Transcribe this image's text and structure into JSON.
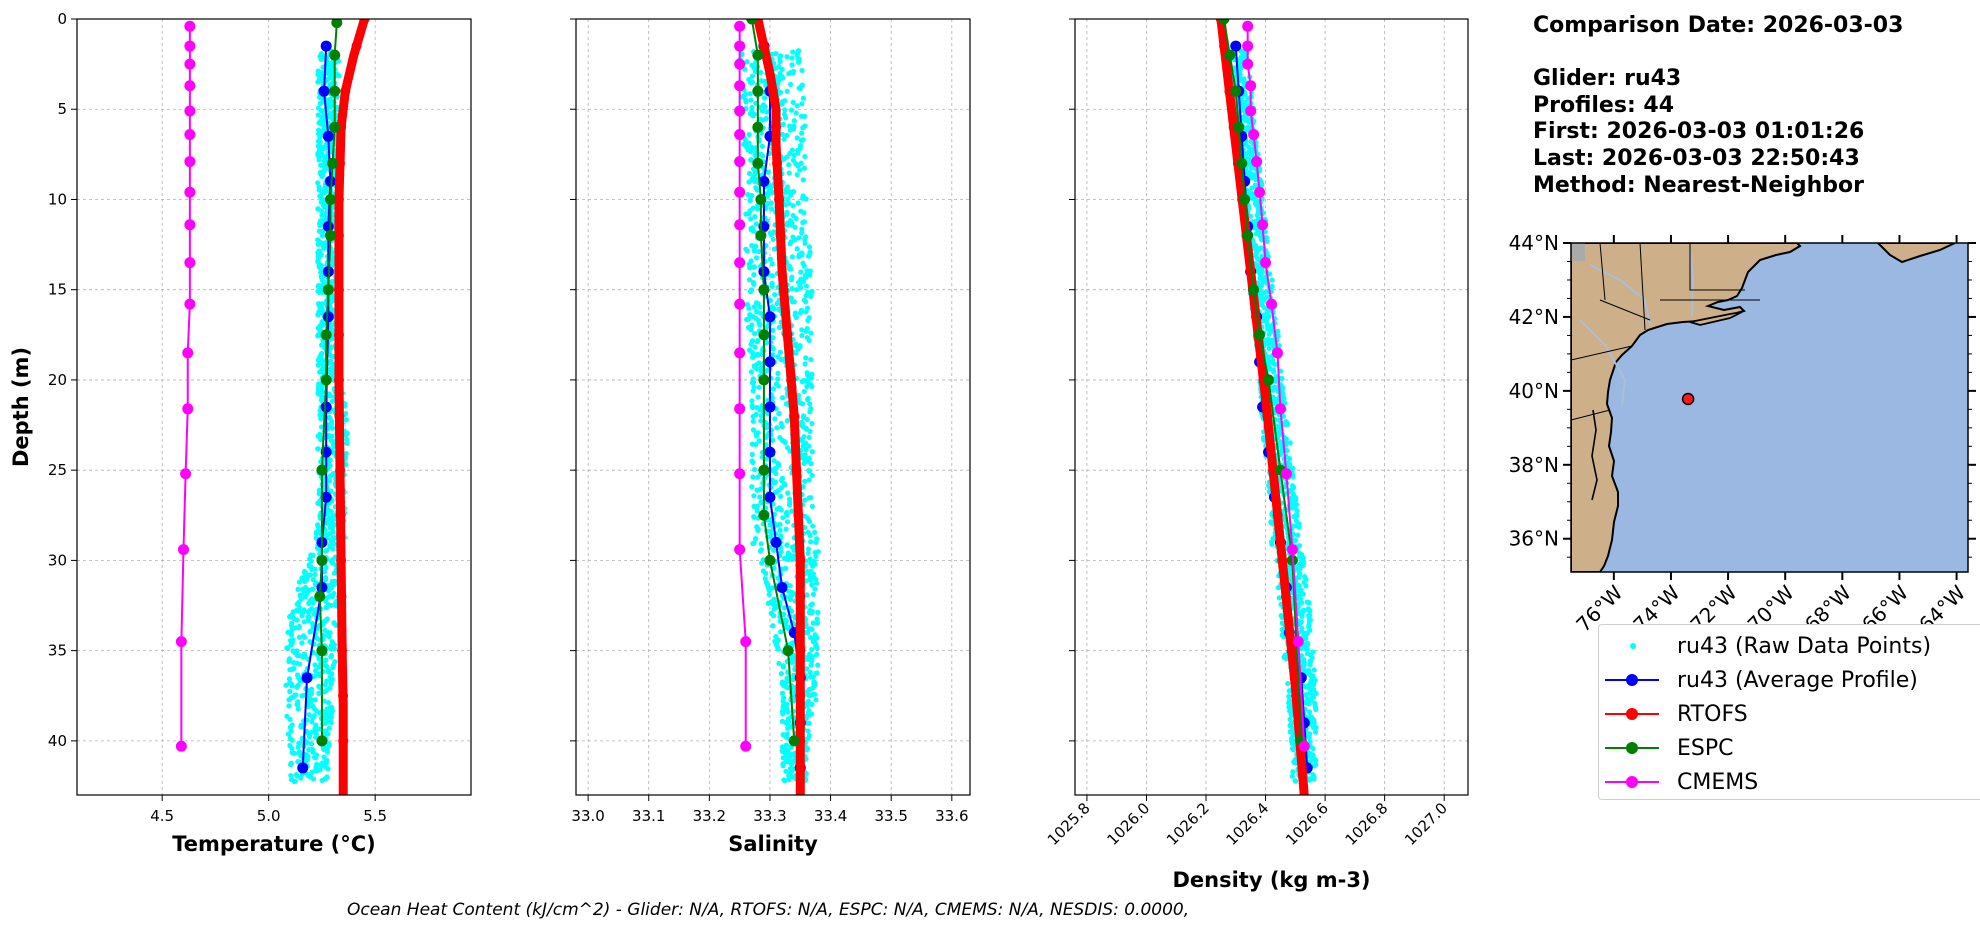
{
  "chart_data": [
    {
      "type": "line",
      "xlabel": "Temperature (°C)",
      "ylabel": "Depth (m)",
      "xlim": [
        4.1,
        5.95
      ],
      "ylim": [
        43,
        0
      ],
      "xticks": [
        4.5,
        5.0,
        5.5
      ],
      "yticks": [
        0,
        5,
        10,
        15,
        20,
        25,
        30,
        35,
        40
      ],
      "grid": true,
      "series": [
        {
          "name": "ru43 (Raw Data Points)",
          "kind": "scatter",
          "color": "#00ffff",
          "depth": [
            2,
            5,
            8,
            11,
            14,
            17,
            20,
            23,
            26,
            29,
            31,
            33,
            35,
            37,
            39,
            41
          ],
          "min": [
            5.23,
            5.23,
            5.23,
            5.23,
            5.23,
            5.23,
            5.23,
            5.23,
            5.23,
            5.22,
            5.15,
            5.1,
            5.08,
            5.08,
            5.08,
            5.1
          ],
          "max": [
            5.33,
            5.33,
            5.33,
            5.33,
            5.33,
            5.33,
            5.35,
            5.37,
            5.36,
            5.36,
            5.33,
            5.32,
            5.32,
            5.3,
            5.3,
            5.28
          ]
        },
        {
          "name": "ru43 (Average Profile)",
          "color": "#0000ff",
          "x": [
            5.27,
            5.26,
            5.28,
            5.29,
            5.28,
            5.28,
            5.28,
            5.27,
            5.27,
            5.27,
            5.25,
            5.25,
            5.18,
            5.16
          ],
          "y": [
            1.5,
            4,
            6.5,
            9,
            11.5,
            14,
            16.5,
            21.5,
            24,
            26.5,
            29,
            31.5,
            36.5,
            41.5
          ]
        },
        {
          "name": "RTOFS",
          "color": "#ff0000",
          "x": [
            5.45,
            5.4,
            5.36,
            5.34,
            5.335,
            5.33,
            5.33,
            5.33,
            5.33,
            5.335,
            5.34,
            5.345,
            5.35,
            5.35,
            5.35
          ],
          "y": [
            0,
            2,
            4,
            6,
            8,
            10,
            12,
            15,
            20,
            25,
            30,
            35,
            38,
            40,
            43
          ]
        },
        {
          "name": "ESPC",
          "color": "#008000",
          "x": [
            5.32,
            5.31,
            5.31,
            5.31,
            5.3,
            5.29,
            5.29,
            5.28,
            5.27,
            5.27,
            5.25,
            5.25,
            5.24,
            5.25,
            5.25
          ],
          "y": [
            0.2,
            2,
            4,
            6,
            8,
            10,
            12,
            15,
            17.5,
            20,
            25,
            30,
            32,
            35,
            40
          ]
        },
        {
          "name": "CMEMS",
          "color": "#ff00ff",
          "x": [
            4.63,
            4.63,
            4.63,
            4.63,
            4.63,
            4.63,
            4.63,
            4.63,
            4.63,
            4.63,
            4.63,
            4.62,
            4.62,
            4.61,
            4.6,
            4.59,
            4.59
          ],
          "y": [
            0.4,
            1.5,
            2.5,
            3.7,
            5.1,
            6.4,
            7.9,
            9.6,
            11.4,
            13.5,
            15.8,
            18.5,
            21.6,
            25.2,
            29.4,
            34.5,
            40.3
          ]
        }
      ]
    },
    {
      "type": "line",
      "xlabel": "Salinity",
      "xlim": [
        32.98,
        33.63
      ],
      "ylim": [
        43,
        0
      ],
      "xticks": [
        33.0,
        33.1,
        33.2,
        33.3,
        33.4,
        33.5,
        33.6
      ],
      "grid": true,
      "series": [
        {
          "name": "ru43 (Raw Data Points)",
          "kind": "scatter",
          "color": "#00ffff",
          "depth": [
            2,
            5,
            8,
            11,
            14,
            17,
            20,
            23,
            26,
            29,
            31,
            33,
            35,
            37,
            39,
            41
          ],
          "min": [
            33.25,
            33.25,
            33.26,
            33.26,
            33.26,
            33.26,
            33.27,
            33.27,
            33.27,
            33.27,
            33.29,
            33.3,
            33.31,
            33.32,
            33.32,
            33.32
          ],
          "max": [
            33.35,
            33.36,
            33.36,
            33.36,
            33.37,
            33.37,
            33.37,
            33.37,
            33.37,
            33.38,
            33.38,
            33.38,
            33.38,
            33.38,
            33.37,
            33.36
          ]
        },
        {
          "name": "ru43 (Average Profile)",
          "color": "#0000ff",
          "x": [
            33.29,
            33.3,
            33.3,
            33.29,
            33.29,
            33.29,
            33.3,
            33.3,
            33.3,
            33.3,
            33.3,
            33.31,
            33.32,
            33.34,
            33.35,
            33.35,
            33.35
          ],
          "y": [
            1.5,
            4,
            6.5,
            9,
            11.5,
            14,
            16.5,
            19,
            21.5,
            24,
            26.5,
            29,
            31.5,
            34,
            36.5,
            39,
            41.5
          ]
        },
        {
          "name": "RTOFS",
          "color": "#ff0000",
          "x": [
            33.28,
            33.29,
            33.3,
            33.31,
            33.31,
            33.315,
            33.32,
            33.33,
            33.34,
            33.345,
            33.35,
            33.35,
            33.35,
            33.35
          ],
          "y": [
            0,
            1.5,
            3,
            5,
            7,
            10,
            14,
            18,
            22,
            26,
            30,
            35,
            40,
            43
          ]
        },
        {
          "name": "ESPC",
          "color": "#008000",
          "x": [
            33.27,
            33.28,
            33.28,
            33.28,
            33.28,
            33.285,
            33.285,
            33.29,
            33.29,
            33.29,
            33.29,
            33.29,
            33.3,
            33.33,
            33.34
          ],
          "y": [
            0,
            2,
            4,
            6,
            8,
            10,
            12,
            15,
            17.5,
            20,
            25,
            27.5,
            30,
            35,
            40
          ]
        },
        {
          "name": "CMEMS",
          "color": "#ff00ff",
          "x": [
            33.25,
            33.25,
            33.25,
            33.25,
            33.25,
            33.25,
            33.25,
            33.25,
            33.25,
            33.25,
            33.25,
            33.25,
            33.25,
            33.25,
            33.25,
            33.26,
            33.26
          ],
          "y": [
            0.4,
            1.5,
            2.5,
            3.7,
            5.1,
            6.4,
            7.9,
            9.6,
            11.4,
            13.5,
            15.8,
            18.5,
            21.6,
            25.2,
            29.4,
            34.5,
            40.3
          ]
        }
      ]
    },
    {
      "type": "line",
      "xlabel": "Density (kg m-3)",
      "xlim": [
        1025.76,
        1027.08
      ],
      "ylim": [
        43,
        0
      ],
      "xticks": [
        1025.8,
        1026.0,
        1026.2,
        1026.4,
        1026.6,
        1026.8,
        1027.0
      ],
      "xtick_rotation": 45,
      "grid": true,
      "series": [
        {
          "name": "ru43 (Raw Data Points)",
          "kind": "scatter",
          "color": "#00ffff",
          "depth": [
            2,
            5,
            8,
            11,
            14,
            17,
            20,
            23,
            26,
            29,
            31,
            33,
            35,
            37,
            39,
            41
          ],
          "min": [
            1026.27,
            1026.29,
            1026.31,
            1026.33,
            1026.34,
            1026.36,
            1026.38,
            1026.39,
            1026.41,
            1026.42,
            1026.44,
            1026.45,
            1026.46,
            1026.47,
            1026.48,
            1026.49
          ],
          "max": [
            1026.34,
            1026.36,
            1026.38,
            1026.4,
            1026.42,
            1026.44,
            1026.46,
            1026.48,
            1026.5,
            1026.52,
            1026.54,
            1026.55,
            1026.56,
            1026.57,
            1026.57,
            1026.57
          ]
        },
        {
          "name": "ru43 (Average Profile)",
          "color": "#0000ff",
          "x": [
            1026.3,
            1026.31,
            1026.32,
            1026.33,
            1026.34,
            1026.35,
            1026.37,
            1026.38,
            1026.39,
            1026.41,
            1026.43,
            1026.45,
            1026.47,
            1026.48,
            1026.52,
            1026.53,
            1026.54
          ],
          "y": [
            1.5,
            4,
            6.5,
            9,
            11.5,
            14,
            16.5,
            19,
            21.5,
            24,
            26.5,
            29,
            31.5,
            34,
            36.5,
            39,
            41.5
          ]
        },
        {
          "name": "RTOFS",
          "color": "#ff0000",
          "x": [
            1026.25,
            1026.3,
            1026.35,
            1026.4,
            1026.45,
            1026.5,
            1026.53
          ],
          "y": [
            0,
            7,
            14,
            21,
            29,
            37,
            43
          ]
        },
        {
          "name": "ESPC",
          "color": "#008000",
          "x": [
            1026.26,
            1026.28,
            1026.3,
            1026.31,
            1026.32,
            1026.33,
            1026.34,
            1026.36,
            1026.38,
            1026.41,
            1026.45,
            1026.49,
            1026.52
          ],
          "y": [
            0,
            2,
            4,
            6,
            8,
            10,
            12,
            15,
            17.5,
            20,
            25,
            30,
            40
          ]
        },
        {
          "name": "CMEMS",
          "color": "#ff00ff",
          "x": [
            1026.34,
            1026.34,
            1026.34,
            1026.35,
            1026.35,
            1026.36,
            1026.37,
            1026.38,
            1026.39,
            1026.4,
            1026.42,
            1026.44,
            1026.45,
            1026.47,
            1026.49,
            1026.51,
            1026.53
          ],
          "y": [
            0.4,
            1.5,
            2.5,
            3.7,
            5.1,
            6.4,
            7.9,
            9.6,
            11.4,
            13.5,
            15.8,
            18.5,
            21.6,
            25.2,
            29.4,
            34.5,
            40.3
          ]
        }
      ]
    }
  ],
  "info": {
    "comparison_date": "Comparison Date: 2026-03-03",
    "glider": "Glider: ru43",
    "profiles": "Profiles: 44",
    "first": "First: 2026-03-03 01:01:26",
    "last": "Last: 2026-03-03 22:50:43",
    "method": "Method: Nearest-Neighbor"
  },
  "map": {
    "lat_ticks": [
      "44°N",
      "42°N",
      "40°N",
      "38°N",
      "36°N"
    ],
    "lon_ticks": [
      "76°W",
      "74°W",
      "72°W",
      "70°W",
      "68°W",
      "66°W",
      "64°W"
    ],
    "lon_range": [
      -77.5,
      -63.6
    ],
    "lat_range": [
      35.1,
      44.0
    ],
    "glider_position": [
      -73.4,
      39.78
    ],
    "land_color": "#cdb08a",
    "ocean_color": "#9ab8e2",
    "river_color": "#a9bfd9"
  },
  "legend": [
    {
      "label": "ru43 (Raw Data Points)",
      "color": "#00ffff",
      "style": "point"
    },
    {
      "label": "ru43 (Average Profile)",
      "color": "#0000ff",
      "style": "line-marker"
    },
    {
      "label": "RTOFS",
      "color": "#ff0000",
      "style": "line-marker"
    },
    {
      "label": "ESPC",
      "color": "#008000",
      "style": "line-marker"
    },
    {
      "label": "CMEMS",
      "color": "#ff00ff",
      "style": "line-marker"
    }
  ],
  "footer": "Ocean Heat Content (kJ/cm^2) - Glider: N/A,  RTOFS: N/A,  ESPC: N/A,  CMEMS: N/A,  NESDIS: 0.0000,"
}
